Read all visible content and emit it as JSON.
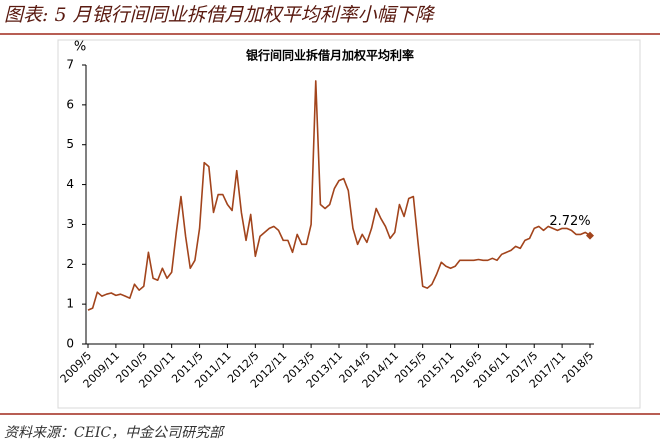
{
  "header": {
    "title": "图表: 5 月银行间同业拆借月加权平均利率小幅下降"
  },
  "chart_data": {
    "type": "line",
    "title": "银行间同业拆借月加权平均利率",
    "y_label": "%",
    "color": "#a2441c",
    "categories": [
      "2009/5",
      null,
      null,
      null,
      null,
      null,
      "2009/11",
      null,
      null,
      null,
      null,
      null,
      "2010/5",
      null,
      null,
      null,
      null,
      null,
      "2010/11",
      null,
      null,
      null,
      null,
      null,
      "2011/5",
      null,
      null,
      null,
      null,
      null,
      "2011/11",
      null,
      null,
      null,
      null,
      null,
      "2012/5",
      null,
      null,
      null,
      null,
      null,
      "2012/11",
      null,
      null,
      null,
      null,
      null,
      "2013/5",
      null,
      null,
      null,
      null,
      null,
      "2013/11",
      null,
      null,
      null,
      null,
      null,
      "2014/5",
      null,
      null,
      null,
      null,
      null,
      "2014/11",
      null,
      null,
      null,
      null,
      null,
      "2015/5",
      null,
      null,
      null,
      null,
      null,
      "2015/11",
      null,
      null,
      null,
      null,
      null,
      "2016/5",
      null,
      null,
      null,
      null,
      null,
      "2016/11",
      null,
      null,
      null,
      null,
      null,
      "2017/5",
      null,
      null,
      null,
      null,
      null,
      "2017/11",
      null,
      null,
      null,
      null,
      null,
      "2018/5"
    ],
    "values": [
      0.85,
      0.9,
      1.3,
      1.2,
      1.25,
      1.28,
      1.22,
      1.25,
      1.2,
      1.15,
      1.5,
      1.35,
      1.45,
      2.3,
      1.65,
      1.6,
      1.9,
      1.65,
      1.8,
      2.8,
      3.7,
      2.7,
      1.9,
      2.1,
      2.9,
      4.55,
      4.45,
      3.3,
      3.75,
      3.75,
      3.5,
      3.35,
      4.35,
      3.3,
      2.6,
      3.25,
      2.2,
      2.7,
      2.8,
      2.9,
      2.95,
      2.85,
      2.6,
      2.6,
      2.3,
      2.75,
      2.5,
      2.5,
      3.0,
      6.6,
      3.5,
      3.4,
      3.5,
      3.9,
      4.1,
      4.15,
      3.85,
      2.9,
      2.5,
      2.75,
      2.55,
      2.9,
      3.4,
      3.15,
      2.95,
      2.65,
      2.8,
      3.5,
      3.2,
      3.65,
      3.7,
      2.55,
      1.45,
      1.4,
      1.5,
      1.75,
      2.05,
      1.95,
      1.9,
      1.95,
      2.1,
      2.1,
      2.1,
      2.1,
      2.12,
      2.1,
      2.1,
      2.15,
      2.1,
      2.25,
      2.3,
      2.35,
      2.45,
      2.4,
      2.6,
      2.65,
      2.9,
      2.95,
      2.85,
      2.95,
      2.9,
      2.85,
      2.9,
      2.9,
      2.85,
      2.75,
      2.75,
      2.8,
      2.72
    ],
    "value_labels": [
      null,
      null,
      null,
      null,
      null,
      null,
      null,
      null,
      null,
      null,
      null,
      null,
      null,
      null,
      null,
      null,
      null,
      null,
      null,
      null,
      null,
      null,
      null,
      null,
      null,
      null,
      null,
      null,
      null,
      null,
      null,
      null,
      null,
      null,
      null,
      null,
      null,
      null,
      null,
      null,
      null,
      null,
      null,
      null,
      null,
      null,
      null,
      null,
      null,
      null,
      null,
      null,
      null,
      null,
      null,
      null,
      null,
      null,
      null,
      null,
      null,
      null,
      null,
      null,
      null,
      null,
      null,
      null,
      null,
      null,
      null,
      null,
      null,
      null,
      null,
      null,
      null,
      null,
      null,
      null,
      null,
      null,
      null,
      null,
      null,
      null,
      null,
      null,
      null,
      null,
      null,
      null,
      null,
      null,
      null,
      null,
      null,
      null,
      null,
      null,
      null,
      null,
      null,
      null,
      null,
      null,
      null,
      null,
      "2.72%"
    ],
    "ylim": [
      0,
      7
    ],
    "yticks": [
      0,
      1,
      2,
      3,
      4,
      5,
      6,
      7
    ],
    "grid": false
  },
  "footer": {
    "source": "资料来源：CEIC，中金公司研究部"
  }
}
